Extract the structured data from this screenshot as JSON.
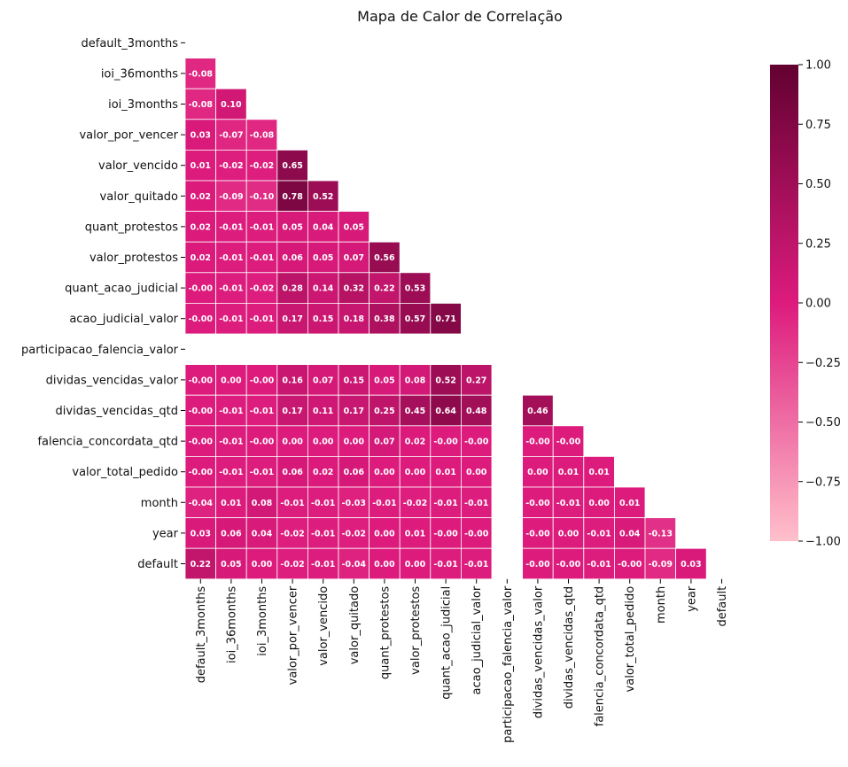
{
  "chart_data": {
    "type": "heatmap",
    "title": "Mapa de Calor de Correlação",
    "xlabel": "",
    "ylabel": "",
    "variables": [
      "default_3months",
      "ioi_36months",
      "ioi_3months",
      "valor_por_vencer",
      "valor_vencido",
      "valor_quitado",
      "quant_protestos",
      "valor_protestos",
      "quant_acao_judicial",
      "acao_judicial_valor",
      "participacao_falencia_valor",
      "dividas_vencidas_valor",
      "dividas_vencidas_qtd",
      "falencia_concordata_qtd",
      "valor_total_pedido",
      "month",
      "year",
      "default"
    ],
    "mask": "upper_triangle_including_diagonal",
    "values": [
      [],
      [
        "-0.08"
      ],
      [
        "-0.08",
        "0.10"
      ],
      [
        "0.03",
        "-0.07",
        "-0.08"
      ],
      [
        "0.01",
        "-0.02",
        "-0.02",
        "0.65"
      ],
      [
        "0.02",
        "-0.09",
        "-0.10",
        "0.78",
        "0.52"
      ],
      [
        "0.02",
        "-0.01",
        "-0.01",
        "0.05",
        "0.04",
        "0.05"
      ],
      [
        "0.02",
        "-0.01",
        "-0.01",
        "0.06",
        "0.05",
        "0.07",
        "0.56"
      ],
      [
        "-0.00",
        "-0.01",
        "-0.02",
        "0.28",
        "0.14",
        "0.32",
        "0.22",
        "0.53"
      ],
      [
        "-0.00",
        "-0.01",
        "-0.01",
        "0.17",
        "0.15",
        "0.18",
        "0.38",
        "0.57",
        "0.71"
      ],
      [
        null,
        null,
        null,
        null,
        null,
        null,
        null,
        null,
        null,
        null
      ],
      [
        "-0.00",
        "0.00",
        "-0.00",
        "0.16",
        "0.07",
        "0.15",
        "0.05",
        "0.08",
        "0.52",
        "0.27",
        null
      ],
      [
        "-0.00",
        "-0.01",
        "-0.01",
        "0.17",
        "0.11",
        "0.17",
        "0.25",
        "0.45",
        "0.64",
        "0.48",
        null,
        "0.46"
      ],
      [
        "-0.00",
        "-0.01",
        "-0.00",
        "0.00",
        "0.00",
        "0.00",
        "0.07",
        "0.02",
        "-0.00",
        "-0.00",
        null,
        "-0.00",
        "-0.00"
      ],
      [
        "-0.00",
        "-0.01",
        "-0.01",
        "0.06",
        "0.02",
        "0.06",
        "0.00",
        "0.00",
        "0.01",
        "0.00",
        null,
        "0.00",
        "0.01",
        "0.01"
      ],
      [
        "-0.04",
        "0.01",
        "0.08",
        "-0.01",
        "-0.01",
        "-0.03",
        "-0.01",
        "-0.02",
        "-0.01",
        "-0.01",
        null,
        "-0.00",
        "-0.01",
        "0.00",
        "0.01"
      ],
      [
        "0.03",
        "0.06",
        "0.04",
        "-0.02",
        "-0.01",
        "-0.02",
        "0.00",
        "0.01",
        "-0.00",
        "-0.00",
        null,
        "-0.00",
        "0.00",
        "-0.01",
        "0.04",
        "-0.13"
      ],
      [
        "0.22",
        "0.05",
        "0.00",
        "-0.02",
        "-0.01",
        "-0.04",
        "0.00",
        "0.00",
        "-0.01",
        "-0.01",
        null,
        "-0.00",
        "-0.00",
        "-0.01",
        "-0.00",
        "-0.09",
        "0.03"
      ]
    ],
    "colorbar": {
      "range": [
        -1.0,
        1.0
      ],
      "ticks": [
        "1.00",
        "0.75",
        "0.50",
        "0.25",
        "0.00",
        "−0.25",
        "−0.50",
        "−0.75",
        "−1.00"
      ],
      "colors": [
        "#ffc0cb",
        "#dd1b7d",
        "#620131"
      ]
    },
    "grid": true,
    "legend": "colorbar-right"
  }
}
